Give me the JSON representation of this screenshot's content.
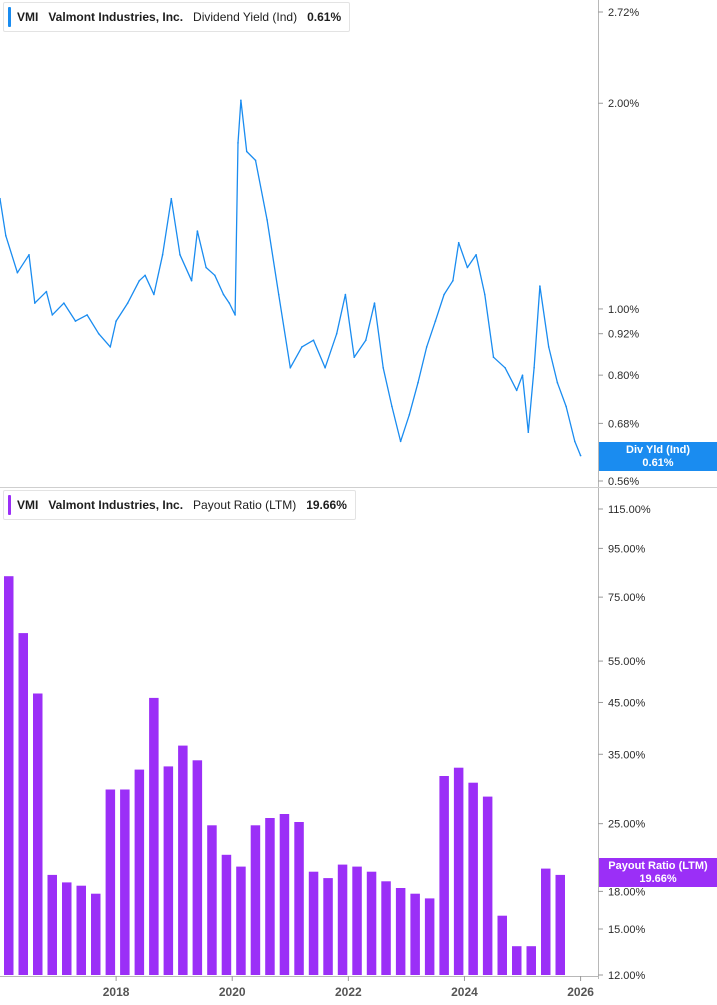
{
  "colors": {
    "yield_line": "#1a8cf0",
    "payout_bar": "#9b2ff7",
    "divider": "#d0d0d0",
    "axis_text": "#2b2b2b"
  },
  "top_legend": {
    "ticker": "VMI",
    "company": "Valmont Industries, Inc.",
    "metric": "Dividend Yield (Ind)",
    "value": "0.61%"
  },
  "bottom_legend": {
    "ticker": "VMI",
    "company": "Valmont Industries, Inc.",
    "metric": "Payout Ratio (LTM)",
    "value": "19.66%"
  },
  "top_badge": {
    "line1": "Div Yld (Ind)",
    "line2": "0.61%"
  },
  "bottom_badge": {
    "line1": "Payout Ratio (LTM)",
    "line2": "19.66%"
  },
  "chart_data": [
    {
      "type": "line",
      "title": "Dividend Yield (Ind)",
      "series": [
        {
          "name": "Div Yld (Ind)"
        }
      ],
      "y_scale": "log",
      "ylim": [
        0.56,
        2.72
      ],
      "ytick_labels": [
        "2.72%",
        "2.00%",
        "1.00%",
        "0.92%",
        "0.80%",
        "0.68%",
        "0.56%"
      ],
      "ytick_values": [
        2.72,
        2.0,
        1.0,
        0.92,
        0.8,
        0.68,
        0.56
      ],
      "x": [
        2016.0,
        2016.1,
        2016.3,
        2016.5,
        2016.6,
        2016.8,
        2016.9,
        2017.1,
        2017.3,
        2017.5,
        2017.7,
        2017.9,
        2018.0,
        2018.2,
        2018.4,
        2018.5,
        2018.65,
        2018.8,
        2018.95,
        2019.1,
        2019.3,
        2019.4,
        2019.55,
        2019.7,
        2019.85,
        2019.95,
        2020.05,
        2020.1,
        2020.15,
        2020.25,
        2020.4,
        2020.6,
        2020.8,
        2021.0,
        2021.2,
        2021.4,
        2021.6,
        2021.8,
        2021.95,
        2022.1,
        2022.3,
        2022.45,
        2022.6,
        2022.75,
        2022.9,
        2023.05,
        2023.2,
        2023.35,
        2023.5,
        2023.65,
        2023.8,
        2023.9,
        2024.05,
        2024.2,
        2024.35,
        2024.5,
        2024.7,
        2024.9,
        2025.0,
        2025.1,
        2025.2,
        2025.3,
        2025.45,
        2025.6,
        2025.75,
        2025.9,
        2026.0
      ],
      "y": [
        1.45,
        1.28,
        1.13,
        1.2,
        1.02,
        1.06,
        0.98,
        1.02,
        0.96,
        0.98,
        0.92,
        0.88,
        0.96,
        1.02,
        1.1,
        1.12,
        1.05,
        1.2,
        1.45,
        1.2,
        1.1,
        1.3,
        1.15,
        1.12,
        1.05,
        1.02,
        0.98,
        1.75,
        2.02,
        1.7,
        1.65,
        1.35,
        1.05,
        0.82,
        0.88,
        0.9,
        0.82,
        0.92,
        1.05,
        0.85,
        0.9,
        1.02,
        0.82,
        0.72,
        0.64,
        0.7,
        0.78,
        0.88,
        0.96,
        1.05,
        1.1,
        1.25,
        1.15,
        1.2,
        1.05,
        0.85,
        0.82,
        0.76,
        0.8,
        0.66,
        0.82,
        1.08,
        0.88,
        0.78,
        0.72,
        0.64,
        0.61
      ],
      "x_range": [
        2016.0,
        2026.3
      ]
    },
    {
      "type": "bar",
      "title": "Payout Ratio (LTM)",
      "series": [
        {
          "name": "Payout Ratio (LTM)"
        }
      ],
      "y_scale": "log",
      "ylim": [
        12,
        115
      ],
      "ytick_labels": [
        "115.00%",
        "95.00%",
        "75.00%",
        "55.00%",
        "45.00%",
        "35.00%",
        "25.00%",
        "18.00%",
        "15.00%",
        "12.00%"
      ],
      "ytick_values": [
        115,
        95,
        75,
        55,
        45,
        35,
        25,
        18,
        15,
        12
      ],
      "xtick_labels": [
        "2018",
        "2020",
        "2022",
        "2024",
        "2026"
      ],
      "xtick_values": [
        2018,
        2020,
        2022,
        2024,
        2026
      ],
      "x_range": [
        2016.0,
        2026.3
      ],
      "x": [
        2016.15,
        2016.4,
        2016.65,
        2016.9,
        2017.15,
        2017.4,
        2017.65,
        2017.9,
        2018.15,
        2018.4,
        2018.65,
        2018.9,
        2019.15,
        2019.4,
        2019.65,
        2019.9,
        2020.15,
        2020.4,
        2020.65,
        2020.9,
        2021.15,
        2021.4,
        2021.65,
        2021.9,
        2022.15,
        2022.4,
        2022.65,
        2022.9,
        2023.15,
        2023.4,
        2023.65,
        2023.9,
        2024.15,
        2024.4,
        2024.65,
        2024.9,
        2025.15,
        2025.4,
        2025.65
      ],
      "values": [
        83,
        63,
        47,
        19.5,
        18.8,
        18.5,
        17.8,
        29.5,
        29.5,
        32.5,
        46,
        33,
        36.5,
        34,
        24.8,
        21.5,
        20.3,
        24.8,
        25.7,
        26.2,
        25.2,
        19.8,
        19.2,
        20.5,
        20.3,
        19.8,
        18.9,
        18.3,
        17.8,
        17.4,
        31.5,
        32.8,
        30.5,
        28.5,
        16,
        13.8,
        13.8,
        20.1,
        19.5
      ]
    }
  ]
}
